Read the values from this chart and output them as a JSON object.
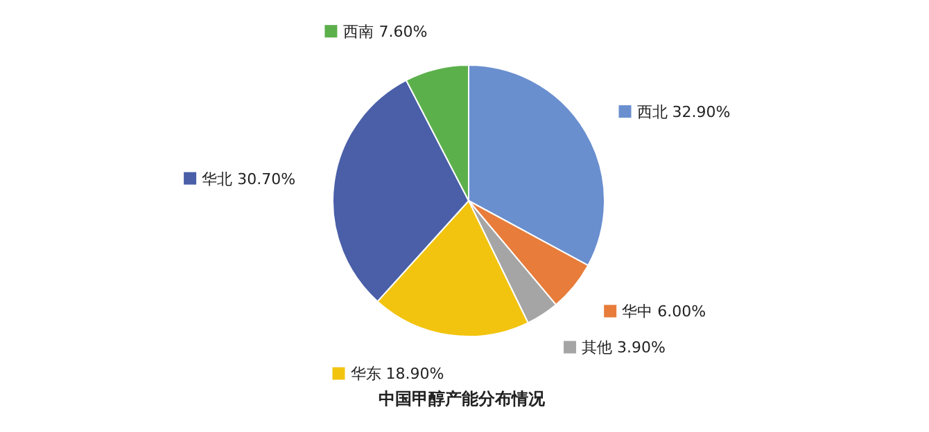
{
  "chart_data": {
    "type": "pie",
    "title": "中国甲醇产能分布情况",
    "categories": [
      "西北",
      "华中",
      "其他",
      "华东",
      "华北",
      "西南"
    ],
    "values": [
      32.9,
      6.0,
      3.9,
      18.9,
      30.7,
      7.6
    ],
    "value_labels": [
      "32.90%",
      "6.00%",
      "3.90%",
      "18.90%",
      "30.70%",
      "7.60%"
    ],
    "colors": [
      "#6a8fcf",
      "#e87c3a",
      "#a5a5a5",
      "#f2c40f",
      "#4a5fa8",
      "#5cb04c"
    ],
    "legend": "right"
  }
}
